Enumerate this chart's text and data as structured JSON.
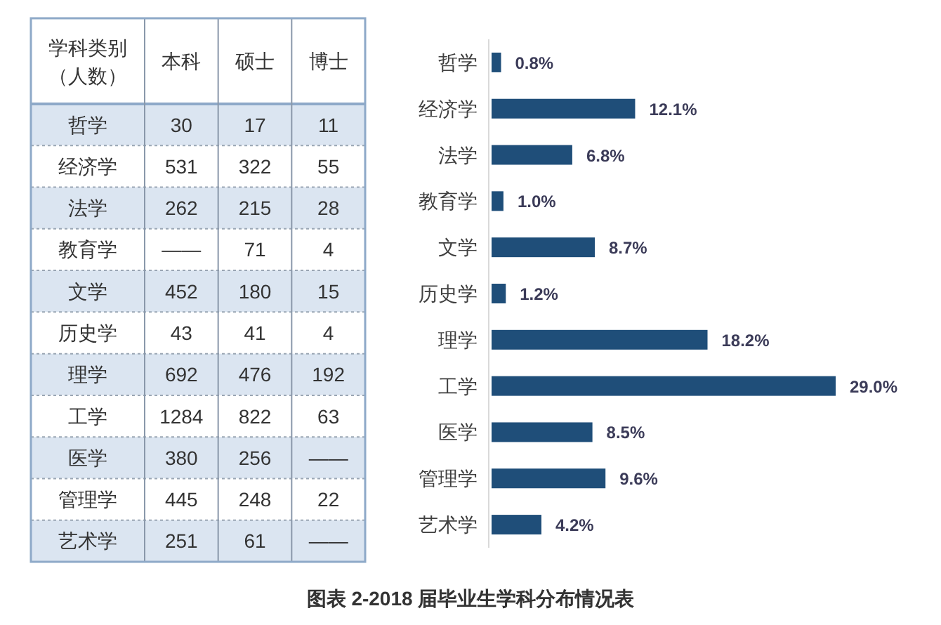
{
  "chart_data": [
    {
      "type": "heatmap",
      "ylabel": "学科类别（人数）",
      "categories": [
        "本科",
        "硕士",
        "博士"
      ],
      "y_categories": [
        "哲学",
        "经济学",
        "法学",
        "教育学",
        "文学",
        "历史学",
        "理学",
        "工学",
        "医学",
        "管理学",
        "艺术学"
      ],
      "cells": [
        [
          30,
          17,
          11
        ],
        [
          531,
          322,
          55
        ],
        [
          262,
          215,
          28
        ],
        [
          null,
          71,
          4
        ],
        [
          452,
          180,
          15
        ],
        [
          43,
          41,
          4
        ],
        [
          692,
          476,
          192
        ],
        [
          1284,
          822,
          63
        ],
        [
          380,
          256,
          null
        ],
        [
          445,
          248,
          22
        ],
        [
          251,
          61,
          null
        ]
      ],
      "data_labels": true,
      "annotations": [
        "——",
        "——",
        "——"
      ]
    },
    {
      "type": "bar",
      "orientation": "horizontal",
      "categories": [
        "哲学",
        "经济学",
        "法学",
        "教育学",
        "文学",
        "历史学",
        "理学",
        "工学",
        "医学",
        "管理学",
        "艺术学"
      ],
      "values": [
        0.8,
        12.1,
        6.8,
        1.0,
        8.7,
        1.2,
        18.2,
        29.0,
        8.5,
        9.6,
        4.2
      ],
      "color": "#1f4e79",
      "value_labels": [
        "0.8%",
        "12.1%",
        "6.8%",
        "1.0%",
        "8.7%",
        "1.2%",
        "18.2%",
        "29.0%",
        "8.5%",
        "9.6%",
        "4.2%"
      ],
      "annotations": [
        "图表 2-2018 届毕业生学科分布情况表"
      ]
    }
  ]
}
